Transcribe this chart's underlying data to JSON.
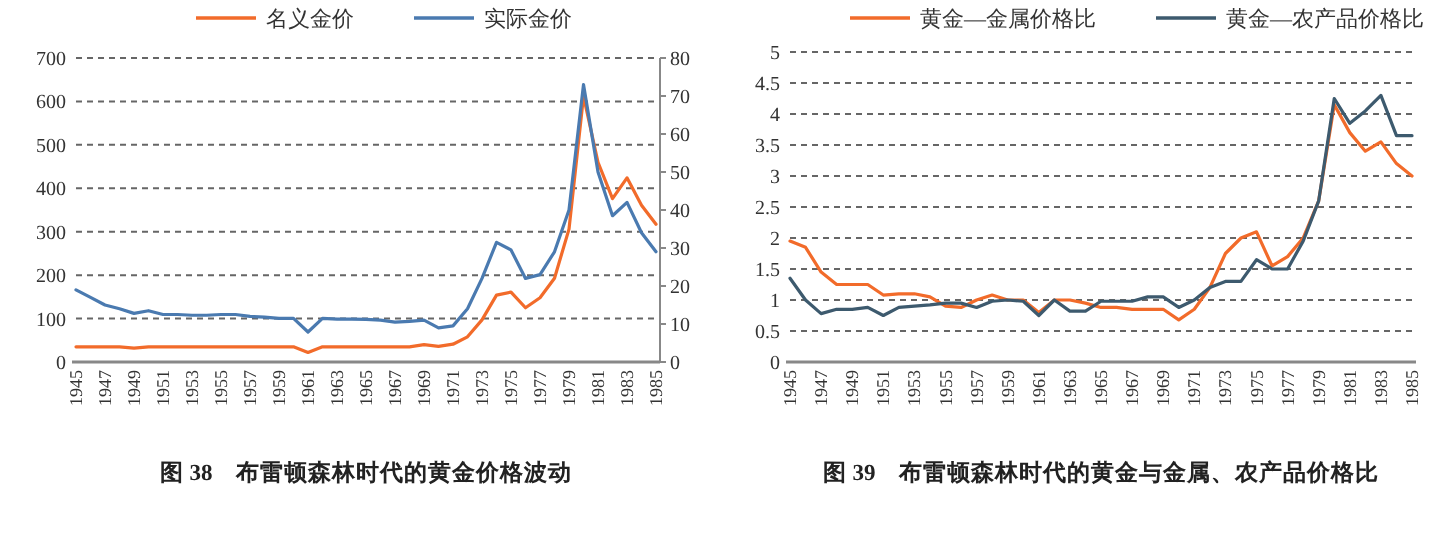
{
  "chart_data": [
    {
      "type": "line",
      "title": "图 38　布雷顿森林时代的黄金价格波动",
      "categories": [
        "1945",
        null,
        "1947",
        null,
        "1949",
        null,
        "1951",
        null,
        "1953",
        null,
        "1955",
        null,
        "1957",
        null,
        "1959",
        null,
        "1961",
        null,
        "1963",
        null,
        "1965",
        null,
        "1967",
        null,
        "1969",
        null,
        "1971",
        null,
        "1973",
        null,
        "1975",
        null,
        "1977",
        null,
        "1979",
        null,
        "1981",
        null,
        "1983",
        null,
        "1985"
      ],
      "series": [
        {
          "name": "名义金价",
          "color": "#f26b2a",
          "values": [
            35,
            35,
            35,
            35,
            32,
            35,
            35,
            35,
            35,
            35,
            35,
            35,
            35,
            35,
            35,
            35,
            22,
            35,
            35,
            35,
            35,
            35,
            35,
            35,
            40,
            36,
            41,
            58,
            97,
            154,
            161,
            125,
            148,
            193,
            306,
            612,
            460,
            376,
            424,
            361,
            317
          ]
        },
        {
          "name": "实际金价",
          "color": "#4a7ab0",
          "axis": "y2",
          "values": [
            19,
            17,
            15,
            14,
            12.8,
            13.5,
            12.5,
            12.5,
            12.3,
            12.3,
            12.5,
            12.5,
            12,
            11.8,
            11.5,
            11.5,
            7.9,
            11.5,
            11.3,
            11.3,
            11.2,
            11,
            10.5,
            10.7,
            11,
            9,
            9.5,
            14,
            22,
            31.5,
            29.5,
            22,
            23,
            29,
            40,
            73,
            50,
            38.5,
            42,
            34,
            29
          ]
        }
      ],
      "ylim": [
        0,
        700
      ],
      "yticks": [
        0,
        100,
        200,
        300,
        400,
        500,
        600,
        700
      ],
      "y2lim": [
        0,
        80
      ],
      "y2ticks": [
        0,
        10,
        20,
        30,
        40,
        50,
        60,
        70,
        80
      ],
      "grid": "y",
      "legend": "top",
      "line_style": "solid"
    },
    {
      "type": "line",
      "title": "图 39　布雷顿森林时代的黄金与金属、农产品价格比",
      "categories": [
        "1945",
        null,
        "1947",
        null,
        "1949",
        null,
        "1951",
        null,
        "1953",
        null,
        "1955",
        null,
        "1957",
        null,
        "1959",
        null,
        "1961",
        null,
        "1963",
        null,
        "1965",
        null,
        "1967",
        null,
        "1969",
        null,
        "1971",
        null,
        "1973",
        null,
        "1975",
        null,
        "1977",
        null,
        "1979",
        null,
        "1981",
        null,
        "1983",
        null,
        "1985"
      ],
      "series": [
        {
          "name": "黄金—金属价格比",
          "color": "#f26b2a",
          "values": [
            1.95,
            1.85,
            1.45,
            1.25,
            1.25,
            1.25,
            1.08,
            1.1,
            1.1,
            1.05,
            0.9,
            0.88,
            1.0,
            1.08,
            1.0,
            1.0,
            0.8,
            1.0,
            1.0,
            0.95,
            0.88,
            0.88,
            0.85,
            0.85,
            0.85,
            0.68,
            0.85,
            1.2,
            1.75,
            2.0,
            2.1,
            1.55,
            1.7,
            2.0,
            2.6,
            4.15,
            3.7,
            3.4,
            3.55,
            3.2,
            3.0
          ]
        },
        {
          "name": "黄金—农产品价格比",
          "color": "#3d5a6e",
          "values": [
            1.35,
            1.0,
            0.78,
            0.85,
            0.85,
            0.88,
            0.75,
            0.88,
            0.9,
            0.92,
            0.95,
            0.95,
            0.88,
            0.98,
            1.0,
            0.98,
            0.75,
            1.0,
            0.82,
            0.82,
            0.98,
            0.98,
            0.98,
            1.05,
            1.05,
            0.88,
            1.0,
            1.2,
            1.3,
            1.3,
            1.65,
            1.5,
            1.5,
            1.95,
            2.6,
            4.25,
            3.85,
            4.05,
            4.3,
            3.65,
            3.65
          ]
        }
      ],
      "ylim": [
        0,
        5
      ],
      "yticks": [
        0,
        0.5,
        1,
        1.5,
        2,
        2.5,
        3,
        3.5,
        4,
        4.5,
        5
      ],
      "grid": "y",
      "legend": "top",
      "line_style": "solid"
    }
  ]
}
